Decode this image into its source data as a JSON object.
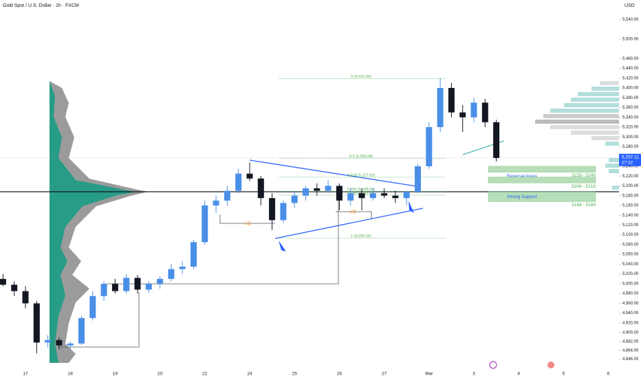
{
  "chart_data": {
    "type": "candlestick",
    "title": "Gold Spot / U.S. Dollar · 1h · FXCM",
    "currency": "USD",
    "categories": [
      null,
      null,
      "17",
      null,
      null,
      null,
      "18",
      null,
      null,
      null,
      "19",
      null,
      null,
      null,
      "20",
      null,
      null,
      null,
      "22",
      null,
      null,
      null,
      "24",
      null,
      null,
      null,
      "25",
      null,
      null,
      null,
      "26",
      null,
      null,
      null,
      "27",
      null,
      null,
      null,
      "Mar",
      null,
      null,
      null,
      "3",
      null,
      null,
      null,
      "4",
      null,
      null,
      null,
      "5",
      null,
      null,
      null,
      "6"
    ],
    "open": [
      5010,
      4998,
      4985,
      4960,
      4880,
      4885,
      4874,
      4878,
      4930,
      4975,
      5000,
      4985,
      5012,
      4988,
      5000,
      5010,
      5030,
      5035,
      5085,
      5160,
      5170,
      5190,
      5225,
      5215,
      5175,
      5130,
      5165,
      5180,
      5195,
      5190,
      5200,
      5170,
      5185,
      5175,
      5185,
      5180,
      5175,
      5188,
      5240,
      5320,
      5400,
      5350,
      5340,
      5370,
      5330,
      null,
      null,
      null,
      null,
      null,
      null,
      null,
      null,
      null,
      null
    ],
    "high": [
      5020,
      5005,
      4995,
      4965,
      4895,
      4890,
      4882,
      4935,
      4985,
      5005,
      5010,
      5020,
      5018,
      5005,
      5015,
      5040,
      5045,
      5090,
      5170,
      5180,
      5200,
      5235,
      5248,
      5220,
      5185,
      5170,
      5190,
      5200,
      5205,
      5212,
      5205,
      5195,
      5195,
      5195,
      5195,
      5190,
      5190,
      5245,
      5330,
      5420,
      5410,
      5365,
      5380,
      5378,
      5335,
      null,
      null,
      null,
      null,
      null,
      null,
      null,
      null,
      null,
      null
    ],
    "low": [
      4995,
      4975,
      4950,
      4858,
      4870,
      4866,
      4866,
      4875,
      4925,
      4965,
      4980,
      4980,
      4980,
      4982,
      4990,
      5005,
      5020,
      5030,
      5080,
      5145,
      5160,
      5185,
      5210,
      5160,
      5110,
      5125,
      5155,
      5170,
      5180,
      5185,
      5150,
      5160,
      5150,
      5170,
      5175,
      5165,
      5160,
      5185,
      5235,
      5310,
      5340,
      5310,
      5330,
      5320,
      5250,
      null,
      null,
      null,
      null,
      null,
      null,
      null,
      null,
      null,
      null
    ],
    "close": [
      4998,
      4985,
      4960,
      4880,
      4885,
      4874,
      4878,
      4930,
      4975,
      5000,
      4985,
      5012,
      4988,
      5000,
      5010,
      5030,
      5035,
      5085,
      5160,
      5170,
      5190,
      5225,
      5215,
      5175,
      5130,
      5165,
      5180,
      5195,
      5190,
      5200,
      5170,
      5185,
      5175,
      5185,
      5180,
      5175,
      5188,
      5240,
      5320,
      5400,
      5350,
      5340,
      5370,
      5330,
      5257,
      null,
      null,
      null,
      null,
      null,
      null,
      null,
      null,
      null,
      null
    ],
    "up_color": "#4a8fe7",
    "down_color": "#131722",
    "ylim": [
      4830,
      5560
    ],
    "yticks": [
      {
        "value": 5540,
        "label": "5,540.00"
      },
      {
        "value": 5500,
        "label": "5,500.00"
      },
      {
        "value": 5460,
        "label": "5,460.00"
      },
      {
        "value": 5440,
        "label": "5,440.00"
      },
      {
        "value": 5420,
        "label": "5,420.00"
      },
      {
        "value": 5400,
        "label": "5,400.00"
      },
      {
        "value": 5380,
        "label": "5,380.00"
      },
      {
        "value": 5360,
        "label": "5,360.00"
      },
      {
        "value": 5340,
        "label": "5,340.00"
      },
      {
        "value": 5320,
        "label": "5,320.00"
      },
      {
        "value": 5300,
        "label": "5,300.00"
      },
      {
        "value": 5280,
        "label": "5,280.00"
      },
      {
        "value": 5240,
        "label": "5,240.00"
      },
      {
        "value": 5220,
        "label": "5,220.00"
      },
      {
        "value": 5200,
        "label": "5,200.00"
      },
      {
        "value": 5180,
        "label": "5,180.00"
      },
      {
        "value": 5160,
        "label": "5,160.00"
      },
      {
        "value": 5140,
        "label": "5,140.00"
      },
      {
        "value": 5120,
        "label": "5,120.00"
      },
      {
        "value": 5100,
        "label": "5,100.00"
      },
      {
        "value": 5080,
        "label": "5,080.00"
      },
      {
        "value": 5060,
        "label": "5,060.00"
      },
      {
        "value": 5040,
        "label": "5,040.00"
      },
      {
        "value": 5020,
        "label": "5,020.00"
      },
      {
        "value": 5000,
        "label": "5,000.00"
      },
      {
        "value": 4980,
        "label": "4,980.00"
      },
      {
        "value": 4960,
        "label": "4,960.00"
      },
      {
        "value": 4940,
        "label": "4,940.00"
      },
      {
        "value": 4920,
        "label": "4,920.00"
      },
      {
        "value": 4900,
        "label": "4,900.00"
      },
      {
        "value": 4882,
        "label": "4,882.00"
      },
      {
        "value": 4864,
        "label": "4,864.00"
      },
      {
        "value": 4846,
        "label": "4,846.00"
      }
    ],
    "current_price": {
      "value": 5257.11,
      "label": "5,257.11",
      "countdown": "27:32",
      "color": "#2962ff"
    },
    "fib_levels": [
      {
        "value": 5419.0,
        "label": "0 (5,419.00)"
      },
      {
        "value": 5256.08,
        "label": "0.5 (5,256.08)"
      },
      {
        "value": 5217.62,
        "label": "0.618 (5,217.62)"
      },
      {
        "value": 5188.52,
        "label": "0.764 (5,188.52)"
      },
      {
        "value": 5181.05,
        "label": "0.786 (5,181.05)"
      },
      {
        "value": 5093.15,
        "label": "1 (5,093.15)"
      }
    ],
    "fib_color": "#4caf50",
    "zones": [
      {
        "low": 5228,
        "high": 5240,
        "label": "5228 - 5240",
        "title": "Reversal Areas"
      },
      {
        "low": 5206,
        "high": 5218,
        "label": "5206 - 5218"
      },
      {
        "low": 5168,
        "high": 5188,
        "label": "5168 - 5188",
        "title": "Strong Support"
      }
    ],
    "zone_color": "#a5d6a7",
    "annotations": [
      "LQ",
      "LQ"
    ]
  }
}
